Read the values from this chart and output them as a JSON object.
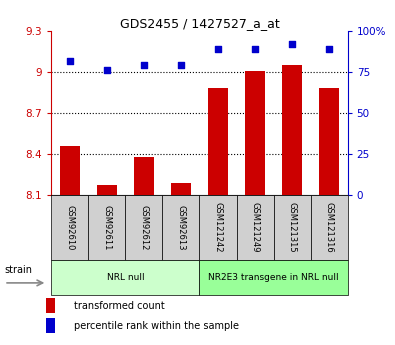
{
  "title": "GDS2455 / 1427527_a_at",
  "samples": [
    "GSM92610",
    "GSM92611",
    "GSM92612",
    "GSM92613",
    "GSM121242",
    "GSM121249",
    "GSM121315",
    "GSM121316"
  ],
  "bar_values": [
    8.46,
    8.17,
    8.38,
    8.19,
    8.88,
    9.01,
    9.05,
    8.88
  ],
  "dot_values": [
    82,
    76,
    79,
    79,
    89,
    89,
    92,
    89
  ],
  "bar_color": "#cc0000",
  "dot_color": "#0000cc",
  "ylim_left": [
    8.1,
    9.3
  ],
  "ylim_right": [
    0,
    100
  ],
  "yticks_left": [
    8.1,
    8.4,
    8.7,
    9.0,
    9.3
  ],
  "ytick_labels_left": [
    "8.1",
    "8.4",
    "8.7",
    "9",
    "9.3"
  ],
  "yticks_right": [
    0,
    25,
    50,
    75,
    100
  ],
  "ytick_labels_right": [
    "0",
    "25",
    "50",
    "75",
    "100%"
  ],
  "groups": [
    {
      "label": "NRL null",
      "start": 0,
      "end": 4,
      "color": "#ccffcc"
    },
    {
      "label": "NR2E3 transgene in NRL null",
      "start": 4,
      "end": 8,
      "color": "#99ff99"
    }
  ],
  "strain_label": "strain",
  "legend_bar": "transformed count",
  "legend_dot": "percentile rank within the sample",
  "bar_width": 0.55,
  "dotted_lines": [
    8.4,
    8.7,
    9.0
  ],
  "background_color": "#ffffff",
  "sample_box_color": "#d0d0d0"
}
